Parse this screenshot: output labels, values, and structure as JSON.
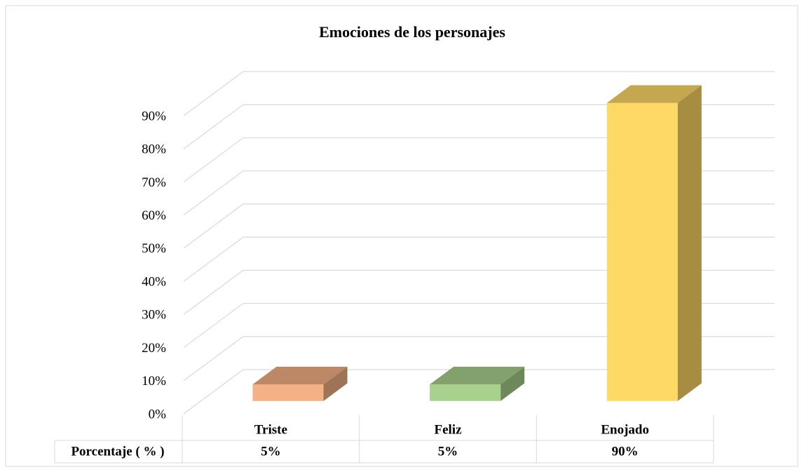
{
  "chart_data": {
    "type": "bar3d",
    "title": "Emociones de los personajes",
    "categories": [
      "Triste",
      "Feliz",
      "Enojado"
    ],
    "values": [
      5,
      5,
      90
    ],
    "value_labels": [
      "5%",
      "5%",
      "90%"
    ],
    "colors": [
      "#f4b183",
      "#a9d18e",
      "#ffd966"
    ],
    "table_row_label": "Porcentaje ( % )",
    "ylim": [
      0,
      90
    ],
    "yticks": [
      {
        "value": 0,
        "label": "0%"
      },
      {
        "value": 10,
        "label": "10%"
      },
      {
        "value": 20,
        "label": "20%"
      },
      {
        "value": 30,
        "label": "30%"
      },
      {
        "value": 40,
        "label": "40%"
      },
      {
        "value": 50,
        "label": "50%"
      },
      {
        "value": 60,
        "label": "60%"
      },
      {
        "value": 70,
        "label": "70%"
      },
      {
        "value": 80,
        "label": "80%"
      },
      {
        "value": 90,
        "label": "90%"
      }
    ],
    "grid": true
  }
}
